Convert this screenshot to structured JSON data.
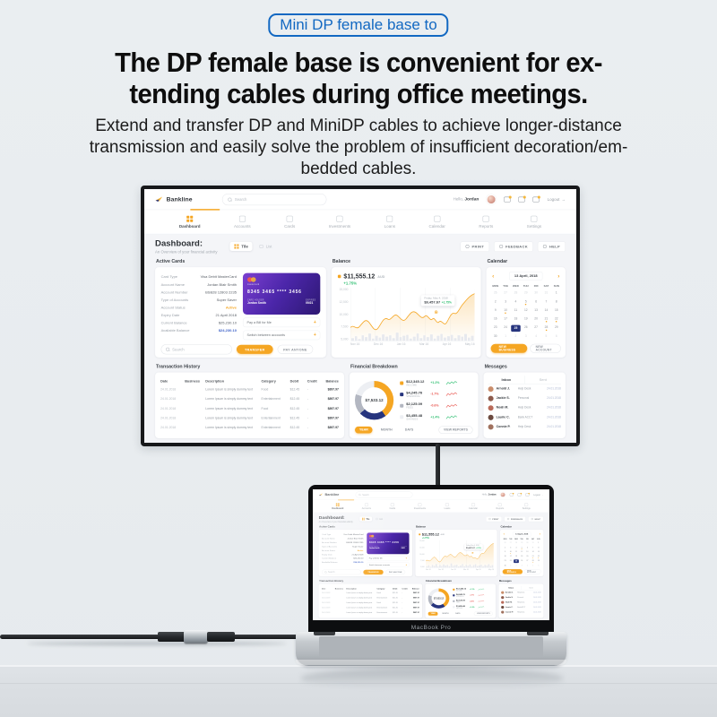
{
  "badge": {
    "label": "Mini DP female base to"
  },
  "headline": {
    "line1": "The DP female base is convenient for ex-",
    "line2": "tending cables during office meetings."
  },
  "subtext": {
    "line1": "Extend and transfer DP and MiniDP cables to achieve longer-distance",
    "line2": "transmission and easily solve the problem of insufficient decoration/em-",
    "line3": "bedded cables."
  },
  "colors": {
    "badge_blue": "#1268c2",
    "accent_yellow": "#f5a623",
    "navy": "#27357e",
    "green": "#2fbf71",
    "red": "#e8554e"
  },
  "laptop": {
    "label": "MacBook Pro"
  },
  "misc": {
    "plus": "+",
    "chev_left": "‹",
    "chev_right": "›",
    "logout_arrow": "→",
    "dash_sep": "-"
  },
  "dashboard": {
    "brand": "Bankline",
    "search_placeholder": "Search",
    "greeting_prefix": "Hello,",
    "greeting_name": "Jordan",
    "logout_label": "Logout",
    "nav": [
      {
        "label": "Dashboard",
        "cls": "active"
      },
      {
        "label": "Accounts"
      },
      {
        "label": "Cards"
      },
      {
        "label": "Investments"
      },
      {
        "label": "Loans"
      },
      {
        "label": "Calendar"
      },
      {
        "label": "Reports"
      },
      {
        "label": "Settings"
      }
    ],
    "header": {
      "title": "Dashboard:",
      "subtitle": "An Overview of your financial activity",
      "tile_label": "Tile",
      "list_label": "List",
      "actions": [
        {
          "label": "PRINT"
        },
        {
          "label": "FEEDBACK"
        },
        {
          "label": "HELP"
        }
      ]
    },
    "active_cards": {
      "title": "Active Cards",
      "fields": [
        {
          "label": "Card Type",
          "value": "Visa Debit MasterCard",
          "cls": ""
        },
        {
          "label": "Account Name",
          "value": "Jordan Blair Smith",
          "cls": ""
        },
        {
          "label": "Account Number",
          "value": "BSB28 12803 2235",
          "cls": ""
        },
        {
          "label": "Type of Accounts",
          "value": "Super Saver",
          "cls": ""
        },
        {
          "label": "Account Status",
          "value": "Active",
          "cls": "orange"
        },
        {
          "label": "Expiry Date",
          "value": "21 April 2018",
          "cls": ""
        },
        {
          "label": "Current Balance",
          "value": "$25,230.10",
          "cls": ""
        },
        {
          "label": "Available Balance",
          "value": "$24,230.10",
          "cls": "blue"
        }
      ],
      "card": {
        "brand_label": "mastercard",
        "number": "8345  3465  ****  3456",
        "holder_label": "CARD HOLDER",
        "holder": "Jordan Smith",
        "expires_label": "EXPIRES",
        "expires": "09/21"
      },
      "quick_actions": [
        {
          "label": "Pay a Bill for Me"
        },
        {
          "label": "Switch between accounts"
        }
      ],
      "search_placeholder": "Search",
      "primary_button": "TRANSFER",
      "secondary_button": "PAY ANYONE"
    },
    "balance": {
      "title": "Balance",
      "amount": "$11,555.12",
      "currency": "AUD",
      "change": "+1.75%",
      "y_ticks": [
        "15,000",
        "12,500",
        "10,000",
        "7,500",
        "5,000"
      ],
      "x_ticks": [
        "Nov 16",
        "Dec 16",
        "Jan 16",
        "Mar 16",
        "Apr 16",
        "May 16"
      ],
      "bars": [
        6,
        10,
        4,
        12,
        8,
        16,
        5,
        11,
        7,
        14,
        9,
        12,
        6,
        18,
        8,
        11,
        13,
        5,
        9,
        16,
        6,
        12,
        8,
        14,
        5,
        11,
        15,
        7,
        10,
        13,
        6,
        12,
        9,
        15,
        7,
        11
      ],
      "tooltip": {
        "date": "Friday, May 4, 2018",
        "value": "$9,457.67",
        "change": "+1.75%"
      }
    },
    "calendar": {
      "title": "Calendar",
      "month": "13 April, 2018",
      "days": [
        "MON",
        "TUE",
        "WED",
        "THU",
        "FRI",
        "SAT",
        "SUN"
      ],
      "cells": [
        {
          "n": "26",
          "cls": "muted"
        },
        {
          "n": "27",
          "cls": "muted"
        },
        {
          "n": "28",
          "cls": "muted"
        },
        {
          "n": "29",
          "cls": "muted"
        },
        {
          "n": "30",
          "cls": "muted"
        },
        {
          "n": "31",
          "cls": "muted"
        },
        {
          "n": "1",
          "cls": ""
        },
        {
          "n": "2",
          "cls": ""
        },
        {
          "n": "3",
          "cls": ""
        },
        {
          "n": "4",
          "cls": ""
        },
        {
          "n": "5",
          "cls": "dot"
        },
        {
          "n": "6",
          "cls": ""
        },
        {
          "n": "7",
          "cls": ""
        },
        {
          "n": "8",
          "cls": ""
        },
        {
          "n": "9",
          "cls": ""
        },
        {
          "n": "10",
          "cls": "dot"
        },
        {
          "n": "11",
          "cls": ""
        },
        {
          "n": "12",
          "cls": ""
        },
        {
          "n": "13",
          "cls": ""
        },
        {
          "n": "14",
          "cls": ""
        },
        {
          "n": "15",
          "cls": ""
        },
        {
          "n": "16",
          "cls": ""
        },
        {
          "n": "17",
          "cls": ""
        },
        {
          "n": "18",
          "cls": ""
        },
        {
          "n": "19",
          "cls": ""
        },
        {
          "n": "20",
          "cls": ""
        },
        {
          "n": "21",
          "cls": "dot"
        },
        {
          "n": "22",
          "cls": "dot"
        },
        {
          "n": "23",
          "cls": ""
        },
        {
          "n": "24",
          "cls": ""
        },
        {
          "n": "25",
          "cls": "selected"
        },
        {
          "n": "26",
          "cls": ""
        },
        {
          "n": "27",
          "cls": ""
        },
        {
          "n": "28",
          "cls": "dot"
        },
        {
          "n": "29",
          "cls": ""
        },
        {
          "n": "30",
          "cls": ""
        },
        {
          "n": "1",
          "cls": "muted"
        },
        {
          "n": "2",
          "cls": "muted"
        },
        {
          "n": "3",
          "cls": "muted"
        },
        {
          "n": "4",
          "cls": "muted"
        },
        {
          "n": "5",
          "cls": "muted"
        },
        {
          "n": "6",
          "cls": "muted"
        }
      ],
      "primary_button": "NEW BUSINESS",
      "secondary_button": "NEW ACCOUNT"
    },
    "transactions": {
      "title": "Transaction History",
      "columns": [
        {
          "label": "Date",
          "cls": "c1"
        },
        {
          "label": "Business",
          "cls": "c2"
        },
        {
          "label": "Description",
          "cls": "c3"
        },
        {
          "label": "Category",
          "cls": "c4"
        },
        {
          "label": "Debit",
          "cls": "c5"
        },
        {
          "label": "Credit",
          "cls": "c6"
        },
        {
          "label": "Balance",
          "cls": "c7"
        }
      ],
      "rows": [
        {
          "date": "24.01.2018",
          "icon": "#e8554e",
          "desc": "Lorem Ipsum is simply dummy text",
          "category": "Food",
          "debit": "$12.45",
          "credit": "-",
          "balance": "$897.97"
        },
        {
          "date": "24.01.2018",
          "icon": "#e9ebee",
          "desc": "Lorem Ipsum is simply dummy text",
          "category": "Entertainment",
          "debit": "$12.45",
          "credit": "-",
          "balance": "$897.97"
        },
        {
          "date": "24.01.2018",
          "icon": "#44b06e",
          "desc": "Lorem Ipsum is simply dummy text",
          "category": "Food",
          "debit": "$12.45",
          "credit": "-",
          "balance": "$897.97"
        },
        {
          "date": "24.01.2018",
          "icon": "#c62828",
          "desc": "Lorem Ipsum is simply dummy text",
          "category": "Entertainment",
          "debit": "$12.45",
          "credit": "-",
          "balance": "$897.97"
        },
        {
          "date": "24.01.2018",
          "icon": "#1f3a93",
          "desc": "Lorem Ipsum is simply dummy text",
          "category": "Entertainment",
          "debit": "$12.45",
          "credit": "-",
          "balance": "$897.97"
        }
      ]
    },
    "breakdown": {
      "title": "Financial Breakdown",
      "total": "$7,533.12",
      "segments": [
        {
          "color": "#f5a623",
          "pct": 40
        },
        {
          "color": "#27357e",
          "pct": 23
        },
        {
          "color": "#b3b7c1",
          "pct": 17
        },
        {
          "color": "#edeff3",
          "pct": 20
        }
      ],
      "legend": [
        {
          "color": "#f5a623",
          "amount": "$12,345.12",
          "label": "INCOME",
          "change": "+1.2%",
          "chg_cls": "pos",
          "trend": "up"
        },
        {
          "color": "#27357e",
          "amount": "$4,245.76",
          "label": "SPENDING",
          "change": "-1.7%",
          "chg_cls": "neg",
          "trend": "down"
        },
        {
          "color": "#b3b7c1",
          "amount": "$2,125.09",
          "label": "FEES",
          "change": "-0.6%",
          "chg_cls": "neg",
          "trend": "down"
        },
        {
          "color": "#edeff3",
          "amount": "$3,455.48",
          "label": "SAVINGS",
          "change": "+1.4%",
          "chg_cls": "pos",
          "trend": "up"
        }
      ],
      "tabs": [
        {
          "label": "YEAR",
          "cls": "active"
        },
        {
          "label": "MONTH",
          "cls": ""
        },
        {
          "label": "DAYS",
          "cls": ""
        },
        {
          "label": "VIEW REPORTS",
          "cls": "outline"
        }
      ]
    },
    "messages": {
      "title": "Messages",
      "tabs": [
        {
          "label": "Inbox",
          "cls": "active"
        },
        {
          "label": "Sent",
          "cls": ""
        }
      ],
      "rows": [
        {
          "name": "Arnold J.",
          "category": "Help Desk",
          "date": "24.01.2018",
          "avatar": "#c98d6b"
        },
        {
          "name": "Jackie S.",
          "category": "Personal",
          "date": "24.01.2018",
          "avatar": "#8d5b4c"
        },
        {
          "name": "Noah M.",
          "category": "Help Desk",
          "date": "24.01.2018",
          "avatar": "#b96a59"
        },
        {
          "name": "Laurie C.",
          "category": "Bank ACCT",
          "date": "24.01.2018",
          "avatar": "#6b4a3f"
        },
        {
          "name": "Connie P.",
          "category": "Help Desk",
          "date": "24.01.2018",
          "avatar": "#a0715e"
        }
      ]
    }
  }
}
